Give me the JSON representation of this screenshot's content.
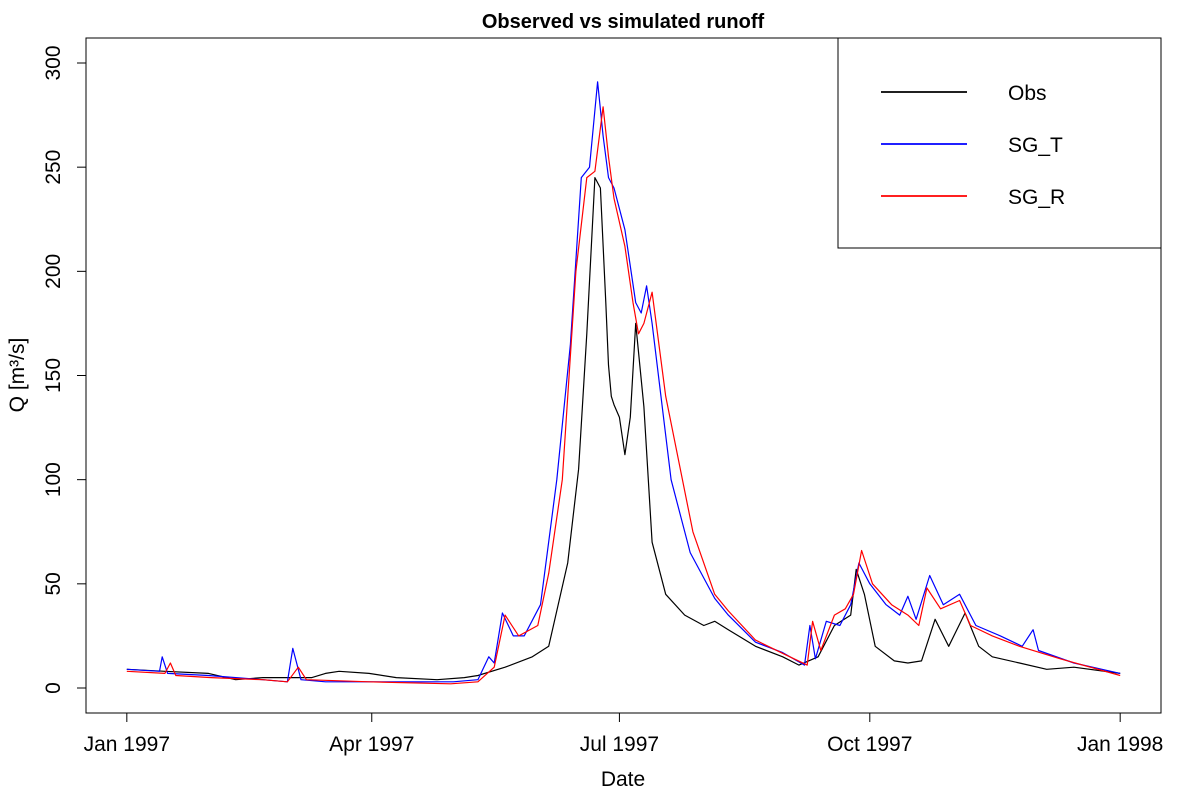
{
  "chart_data": {
    "type": "line",
    "title": "Observed vs simulated runoff",
    "xlabel": "Date",
    "ylabel": "Q [m³/s]",
    "xlim": [
      "1996-12-17",
      "1998-01-16"
    ],
    "ylim": [
      -12,
      312
    ],
    "x_ticks": [
      "1997-01-01",
      "1997-04-01",
      "1997-07-01",
      "1997-10-01",
      "1998-01-01"
    ],
    "x_tick_labels": [
      "Jan 1997",
      "Apr 1997",
      "Jul 1997",
      "Oct 1997",
      "Jan 1998"
    ],
    "y_ticks": [
      0,
      50,
      100,
      150,
      200,
      250,
      300
    ],
    "y_tick_labels": [
      "0",
      "50",
      "100",
      "150",
      "200",
      "250",
      "300"
    ],
    "grid": false,
    "legend_position": "top-right",
    "series": [
      {
        "name": "Obs",
        "color": "#000000",
        "points": [
          [
            "1997-01-01",
            9
          ],
          [
            "1997-01-15",
            8
          ],
          [
            "1997-01-31",
            7
          ],
          [
            "1997-02-10",
            4
          ],
          [
            "1997-02-20",
            5
          ],
          [
            "1997-03-01",
            5
          ],
          [
            "1997-03-10",
            5
          ],
          [
            "1997-03-15",
            7
          ],
          [
            "1997-03-20",
            8
          ],
          [
            "1997-03-31",
            7
          ],
          [
            "1997-04-10",
            5
          ],
          [
            "1997-04-25",
            4
          ],
          [
            "1997-05-05",
            5
          ],
          [
            "1997-05-10",
            6
          ],
          [
            "1997-05-20",
            10
          ],
          [
            "1997-05-30",
            15
          ],
          [
            "1997-06-05",
            20
          ],
          [
            "1997-06-12",
            60
          ],
          [
            "1997-06-16",
            105
          ],
          [
            "1997-06-19",
            170
          ],
          [
            "1997-06-22",
            245
          ],
          [
            "1997-06-24",
            240
          ],
          [
            "1997-06-26",
            185
          ],
          [
            "1997-06-27",
            155
          ],
          [
            "1997-06-28",
            140
          ],
          [
            "1997-06-29",
            136
          ],
          [
            "1997-07-01",
            130
          ],
          [
            "1997-07-03",
            112
          ],
          [
            "1997-07-05",
            130
          ],
          [
            "1997-07-07",
            175
          ],
          [
            "1997-07-10",
            135
          ],
          [
            "1997-07-13",
            70
          ],
          [
            "1997-07-18",
            45
          ],
          [
            "1997-07-25",
            35
          ],
          [
            "1997-08-01",
            30
          ],
          [
            "1997-08-05",
            32
          ],
          [
            "1997-08-10",
            28
          ],
          [
            "1997-08-20",
            20
          ],
          [
            "1997-08-30",
            15
          ],
          [
            "1997-09-05",
            11
          ],
          [
            "1997-09-12",
            15
          ],
          [
            "1997-09-18",
            30
          ],
          [
            "1997-09-24",
            35
          ],
          [
            "1997-09-26",
            57
          ],
          [
            "1997-09-29",
            45
          ],
          [
            "1997-10-03",
            20
          ],
          [
            "1997-10-10",
            13
          ],
          [
            "1997-10-15",
            12
          ],
          [
            "1997-10-20",
            13
          ],
          [
            "1997-10-25",
            33
          ],
          [
            "1997-10-30",
            20
          ],
          [
            "1997-11-05",
            36
          ],
          [
            "1997-11-10",
            20
          ],
          [
            "1997-11-15",
            15
          ],
          [
            "1997-11-25",
            12
          ],
          [
            "1997-12-05",
            9
          ],
          [
            "1997-12-15",
            10
          ],
          [
            "1998-01-01",
            7
          ]
        ]
      },
      {
        "name": "SG_T",
        "color": "#0000ff",
        "points": [
          [
            "1997-01-01",
            9
          ],
          [
            "1997-01-13",
            8
          ],
          [
            "1997-01-14",
            15
          ],
          [
            "1997-01-16",
            7
          ],
          [
            "1997-01-31",
            6
          ],
          [
            "1997-02-20",
            4
          ],
          [
            "1997-03-01",
            3
          ],
          [
            "1997-03-03",
            19
          ],
          [
            "1997-03-06",
            4
          ],
          [
            "1997-03-15",
            3
          ],
          [
            "1997-03-31",
            3
          ],
          [
            "1997-04-15",
            3
          ],
          [
            "1997-05-01",
            3
          ],
          [
            "1997-05-10",
            4
          ],
          [
            "1997-05-14",
            15
          ],
          [
            "1997-05-16",
            12
          ],
          [
            "1997-05-19",
            36
          ],
          [
            "1997-05-23",
            25
          ],
          [
            "1997-05-27",
            25
          ],
          [
            "1997-06-02",
            40
          ],
          [
            "1997-06-08",
            100
          ],
          [
            "1997-06-13",
            165
          ],
          [
            "1997-06-17",
            245
          ],
          [
            "1997-06-20",
            250
          ],
          [
            "1997-06-23",
            291
          ],
          [
            "1997-06-25",
            265
          ],
          [
            "1997-06-27",
            245
          ],
          [
            "1997-06-29",
            240
          ],
          [
            "1997-07-03",
            220
          ],
          [
            "1997-07-07",
            185
          ],
          [
            "1997-07-09",
            180
          ],
          [
            "1997-07-11",
            193
          ],
          [
            "1997-07-13",
            175
          ],
          [
            "1997-07-20",
            100
          ],
          [
            "1997-07-27",
            65
          ],
          [
            "1997-08-05",
            43
          ],
          [
            "1997-08-10",
            35
          ],
          [
            "1997-08-20",
            22
          ],
          [
            "1997-08-30",
            17
          ],
          [
            "1997-09-07",
            11
          ],
          [
            "1997-09-09",
            30
          ],
          [
            "1997-09-11",
            14
          ],
          [
            "1997-09-15",
            32
          ],
          [
            "1997-09-20",
            30
          ],
          [
            "1997-09-24",
            40
          ],
          [
            "1997-09-27",
            60
          ],
          [
            "1997-10-01",
            50
          ],
          [
            "1997-10-07",
            40
          ],
          [
            "1997-10-12",
            35
          ],
          [
            "1997-10-15",
            44
          ],
          [
            "1997-10-18",
            33
          ],
          [
            "1997-10-23",
            54
          ],
          [
            "1997-10-28",
            40
          ],
          [
            "1997-11-03",
            45
          ],
          [
            "1997-11-09",
            30
          ],
          [
            "1997-11-18",
            25
          ],
          [
            "1997-11-26",
            20
          ],
          [
            "1997-11-30",
            28
          ],
          [
            "1997-12-02",
            18
          ],
          [
            "1997-12-15",
            12
          ],
          [
            "1998-01-01",
            7
          ]
        ]
      },
      {
        "name": "SG_R",
        "color": "#ff0000",
        "points": [
          [
            "1997-01-01",
            8
          ],
          [
            "1997-01-15",
            7
          ],
          [
            "1997-01-17",
            12
          ],
          [
            "1997-01-19",
            6
          ],
          [
            "1997-02-01",
            5
          ],
          [
            "1997-02-20",
            4
          ],
          [
            "1997-03-01",
            3
          ],
          [
            "1997-03-05",
            10
          ],
          [
            "1997-03-08",
            4
          ],
          [
            "1997-03-31",
            3
          ],
          [
            "1997-04-30",
            2
          ],
          [
            "1997-05-10",
            3
          ],
          [
            "1997-05-16",
            10
          ],
          [
            "1997-05-20",
            35
          ],
          [
            "1997-05-25",
            25
          ],
          [
            "1997-06-01",
            30
          ],
          [
            "1997-06-05",
            55
          ],
          [
            "1997-06-10",
            100
          ],
          [
            "1997-06-15",
            200
          ],
          [
            "1997-06-19",
            245
          ],
          [
            "1997-06-22",
            248
          ],
          [
            "1997-06-25",
            279
          ],
          [
            "1997-06-27",
            255
          ],
          [
            "1997-06-29",
            235
          ],
          [
            "1997-07-03",
            212
          ],
          [
            "1997-07-06",
            185
          ],
          [
            "1997-07-08",
            170
          ],
          [
            "1997-07-10",
            175
          ],
          [
            "1997-07-13",
            190
          ],
          [
            "1997-07-18",
            140
          ],
          [
            "1997-07-28",
            75
          ],
          [
            "1997-08-05",
            45
          ],
          [
            "1997-08-10",
            37
          ],
          [
            "1997-08-20",
            23
          ],
          [
            "1997-08-31",
            16
          ],
          [
            "1997-09-08",
            11
          ],
          [
            "1997-09-10",
            32
          ],
          [
            "1997-09-13",
            18
          ],
          [
            "1997-09-18",
            35
          ],
          [
            "1997-09-22",
            38
          ],
          [
            "1997-09-25",
            45
          ],
          [
            "1997-09-28",
            66
          ],
          [
            "1997-10-02",
            50
          ],
          [
            "1997-10-09",
            40
          ],
          [
            "1997-10-15",
            35
          ],
          [
            "1997-10-19",
            30
          ],
          [
            "1997-10-22",
            48
          ],
          [
            "1997-10-27",
            38
          ],
          [
            "1997-11-03",
            42
          ],
          [
            "1997-11-07",
            30
          ],
          [
            "1997-11-15",
            25
          ],
          [
            "1997-11-25",
            20
          ],
          [
            "1997-12-10",
            14
          ],
          [
            "1998-01-01",
            6
          ]
        ]
      }
    ]
  }
}
